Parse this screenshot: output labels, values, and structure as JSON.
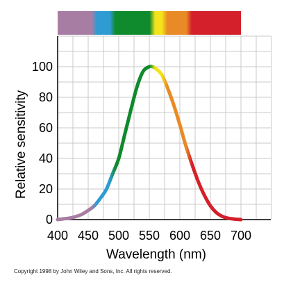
{
  "chart_data": {
    "type": "line",
    "title": "",
    "xlabel": "Wavelength (nm)",
    "ylabel": "Relative sensitivity",
    "xlim": [
      400,
      750
    ],
    "ylim": [
      0,
      120
    ],
    "x_ticks": [
      400,
      450,
      500,
      550,
      600,
      650,
      700
    ],
    "y_ticks": [
      0,
      20,
      40,
      60,
      80,
      100
    ],
    "grid": true,
    "legend": "none",
    "series": [
      {
        "x": [
          400,
          410,
          420,
          430,
          440,
          450,
          460,
          470,
          480,
          490,
          500,
          510,
          520,
          530,
          540,
          550,
          555,
          560,
          570,
          580,
          590,
          600,
          610,
          620,
          630,
          640,
          650,
          660,
          670,
          680,
          690,
          700
        ],
        "y": [
          0,
          0.5,
          1,
          2,
          3.5,
          6,
          9,
          14,
          20,
          30,
          40,
          56,
          72,
          87,
          97,
          100,
          100,
          99,
          95,
          86,
          75,
          62,
          48,
          36,
          25,
          16,
          9,
          4.5,
          2,
          0.8,
          0.3,
          0
        ]
      }
    ],
    "spectrum_colors": [
      {
        "from": 400,
        "to": 460,
        "color": "#a87da3"
      },
      {
        "from": 460,
        "to": 490,
        "color": "#2e9bd3"
      },
      {
        "from": 490,
        "to": 555,
        "color": "#0f8a2c"
      },
      {
        "from": 555,
        "to": 575,
        "color": "#f4e31a"
      },
      {
        "from": 575,
        "to": 615,
        "color": "#e88a25"
      },
      {
        "from": 615,
        "to": 700,
        "color": "#d3202a"
      }
    ]
  },
  "footer": {
    "copyright": "Copyright 1998 by John Wiley and Sons, Inc.  All rights reserved."
  }
}
